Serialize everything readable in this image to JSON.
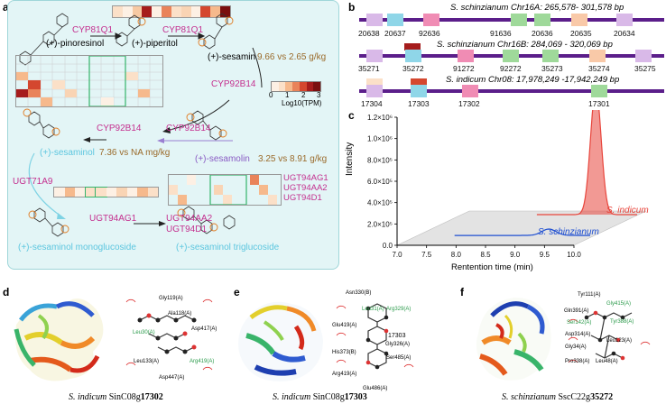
{
  "panels": {
    "a": "a",
    "b": "b",
    "c": "c",
    "d": "d",
    "e": "e",
    "f": "f"
  },
  "pathway": {
    "compounds": {
      "pinoresinol": "(+)-pinoresinol",
      "piperitol": "(+)-piperitol",
      "sesamin": "(+)-sesamin",
      "sesaminol": "(+)-sesaminol",
      "sesamolin": "(+)-sesamolin",
      "monoglucoside": "(+)-sesaminol monoglucoside",
      "triglucoside": "(+)-sesaminol triglucoside"
    },
    "enzymes": {
      "cyp81q1_a": "CYP81Q1",
      "cyp81q1_b": "CYP81Q1",
      "cyp92b14_a": "CYP92B14",
      "cyp92b14_b": "CYP92B14",
      "cyp92b14_c": "CYP92B14",
      "ugt71a9": "UGT71A9",
      "ugt94ag1": "UGT94AG1",
      "ugt94aa2": "UGT94AA2",
      "ugt94d1": "UGT94D1",
      "ugt_list": [
        "UGT94AG1",
        "UGT94AA2",
        "UGT94D1"
      ]
    },
    "contents": {
      "sesamin": "9.66 vs 2.65 g/kg",
      "sesaminol": "7.36 vs NA mg/kg",
      "sesamolin": "3.25 vs 8.91 g/kg"
    },
    "legend": {
      "title": "Log10(TPM)",
      "ticks": [
        "0",
        "1",
        "2",
        "3"
      ]
    }
  },
  "synteny": {
    "tracks": [
      {
        "title": "S. schinzianum Chr16A: 265,578- 301,578 bp",
        "genes": [
          "20638",
          "20637",
          "92636",
          "91636",
          "20636",
          "20635",
          "20634"
        ]
      },
      {
        "title": "S. schinzianum Chr16B: 284,069 - 320,069 bp",
        "genes": [
          "35271",
          "35272",
          "91272",
          "92272",
          "35273",
          "35274",
          "35275"
        ]
      },
      {
        "title": "S. indicum Chr08: 17,978,249 -17,942,249 bp",
        "genes": [
          "17304",
          "17303",
          "17302",
          "17301"
        ]
      }
    ]
  },
  "chromatogram": {
    "ylabel": "Intensity",
    "xlabel": "Rentention time (min)",
    "series_labels": {
      "indicum": "S. indicum",
      "schinzianum": "S. schinzianum"
    },
    "chart_data": {
      "type": "line",
      "title": "",
      "xlabel": "Rentention time (min)",
      "ylabel": "Intensity",
      "xlim": [
        7.0,
        10.0
      ],
      "ylim": [
        0,
        1200000
      ],
      "xticks": [
        "7.0",
        "7.5",
        "8.0",
        "8.5",
        "9.0",
        "9.5",
        "10.0"
      ],
      "yticks": [
        "0.0",
        "2.0×10⁵",
        "4.0×10⁵",
        "6.0×10⁵",
        "8.0×10⁵",
        "1.0×10⁶",
        "1.2×10⁶"
      ],
      "series": [
        {
          "name": "S. indicum",
          "color": "#e8453c",
          "peak_time": 9.3,
          "peak_intensity": 1180000
        },
        {
          "name": "S. schinzianum",
          "color": "#1f4fd1",
          "peak_time": 9.3,
          "peak_intensity": 60000
        }
      ]
    }
  },
  "docking": {
    "d": {
      "caption_species": "S. indicum",
      "caption_gene_prefix": "SinC08g",
      "caption_gene_bold": "17302",
      "residues": [
        "Gly119(A)",
        "Ala118(A)",
        "Leu30(A)",
        "Asp417(A)",
        "Leu133(A)",
        "Arg419(A)",
        "Asp447(A)"
      ]
    },
    "e": {
      "caption_species": "S. indicum",
      "caption_gene_prefix": "SinC08g",
      "caption_gene_bold": "17303",
      "residues": [
        "Asn330(B)",
        "Leu31(A)",
        "Arg329(A)",
        "Glu419(A)",
        "17303",
        "Gly326(A)",
        "His373(B)",
        "Ser485(A)",
        "Arg419(A)",
        "Glu486(A)"
      ]
    },
    "f": {
      "caption_species": "S. schinzianum",
      "caption_gene_prefix": "SscC22g",
      "caption_gene_bold": "35272",
      "residues": [
        "Tyr111(A)",
        "Gly415(A)",
        "Gln391(A)",
        "Ser142(A)",
        "Tyr388(A)",
        "Asp314(A)",
        "Leu123(A)",
        "Gly34(A)",
        "Leu48(A)",
        "Pro338(A)"
      ]
    }
  }
}
